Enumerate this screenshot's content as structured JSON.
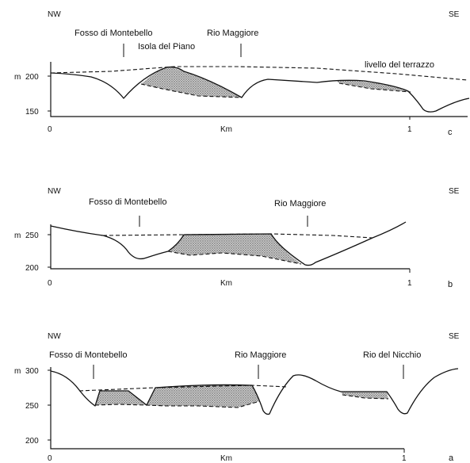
{
  "panels": [
    {
      "id": "c",
      "letter": "c",
      "left_label": "NW",
      "right_label": "SE",
      "x_unit": "Km",
      "x_ticks": [
        "0",
        "1"
      ],
      "elev_unit": "m",
      "elev_ticks": [
        "200",
        "150"
      ],
      "places": [
        "Fosso di Montebello",
        "Isola del Piano",
        "Rio Maggiore"
      ],
      "terrace_label": "livello del terrazzo"
    },
    {
      "id": "b",
      "letter": "b",
      "left_label": "NW",
      "right_label": "SE",
      "x_unit": "Km",
      "x_ticks": [
        "0",
        "1"
      ],
      "elev_unit": "m",
      "elev_ticks": [
        "250",
        "200"
      ],
      "places": [
        "Fosso di Montebello",
        "Rio Maggiore"
      ]
    },
    {
      "id": "a",
      "letter": "a",
      "left_label": "NW",
      "right_label": "SE",
      "x_unit": "Km",
      "x_ticks": [
        "0",
        "1"
      ],
      "elev_unit": "m",
      "elev_ticks": [
        "300",
        "250",
        "200"
      ],
      "places": [
        "Fosso di Montebello",
        "Rio Maggiore",
        "Rio del Nicchio"
      ]
    }
  ]
}
